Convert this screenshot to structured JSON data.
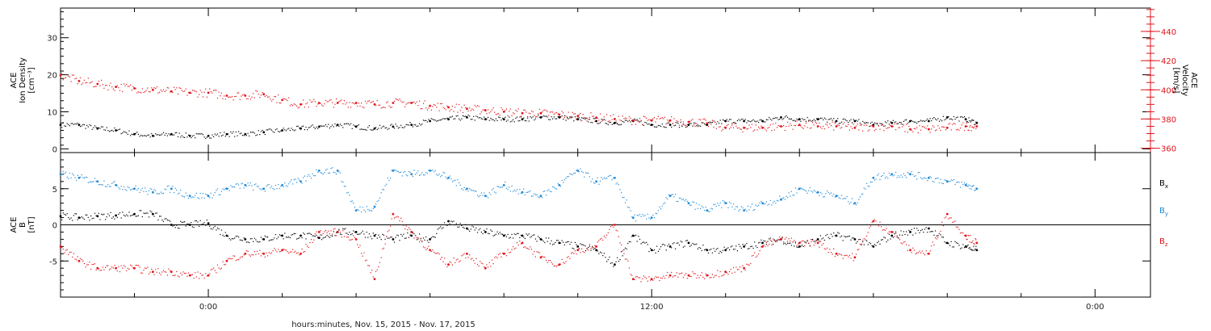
{
  "x_axis": {
    "title": "hours:minutes, Nov. 15, 2015 - Nov. 17, 2015",
    "start_hour": -4,
    "end_hour": 25.5,
    "labeled_ticks": [
      {
        "hour": 0,
        "label": "0:00"
      },
      {
        "hour": 12,
        "label": "12:00"
      },
      {
        "hour": 24,
        "label": "0:00"
      }
    ],
    "minor_tick_hours": [
      -2,
      2,
      4,
      6,
      8,
      10,
      14,
      16,
      18,
      20,
      22
    ]
  },
  "chart_data": [
    {
      "type": "scatter",
      "panel": "plasma",
      "left_axis": {
        "label_lines": [
          "ACE",
          "Ion Density",
          "[cm⁻³]"
        ],
        "ylim": [
          -1,
          38
        ],
        "ticks": [
          0,
          10,
          20,
          30
        ]
      },
      "right_axis": {
        "label_lines": [
          "ACE",
          "Velocity",
          "[km/s]"
        ],
        "ylim": [
          357,
          456
        ],
        "ticks": [
          360,
          380,
          400,
          420,
          440
        ],
        "color": "#e0151b"
      },
      "series": [
        {
          "color": "#000000",
          "axis": "left",
          "x": [
            -4,
            -3.5,
            -3,
            -2.5,
            -2,
            -1.5,
            -1,
            -0.5,
            0,
            0.5,
            1,
            1.5,
            2,
            2.5,
            3,
            3.5,
            4,
            4.5,
            5,
            5.5,
            6,
            6.5,
            7,
            7.5,
            8,
            8.5,
            9,
            9.5,
            10,
            10.5,
            11,
            11.5,
            12,
            12.5,
            13,
            13.5,
            14,
            14.5,
            15,
            15.5,
            16,
            16.5,
            17,
            17.5,
            18,
            18.5,
            19,
            19.5,
            20,
            20.5,
            20.8
          ],
          "y": [
            6.5,
            6.5,
            5.5,
            5,
            4,
            3.5,
            4,
            3.5,
            3.5,
            4,
            4,
            4.5,
            5,
            5.5,
            6,
            6.5,
            6,
            5.5,
            6,
            6.5,
            7.5,
            8,
            8.5,
            8,
            8,
            8,
            8.5,
            8.5,
            8,
            7.5,
            7,
            7.5,
            6.5,
            6.5,
            6.5,
            6.5,
            7.5,
            7.5,
            7.5,
            8.5,
            8,
            8,
            7.5,
            7.5,
            6.5,
            7,
            7.5,
            7.5,
            8.5,
            8,
            7
          ]
        },
        {
          "color": "#e0151b",
          "axis": "right",
          "x": [
            -4,
            -3.5,
            -3,
            -2.5,
            -2,
            -1.5,
            -1,
            -0.5,
            0,
            0.5,
            1,
            1.5,
            2,
            2.5,
            3,
            3.5,
            4,
            4.5,
            5,
            5.5,
            6,
            6.5,
            7,
            7.5,
            8,
            8.5,
            9,
            9.5,
            10,
            10.5,
            11,
            11.5,
            12,
            12.5,
            13,
            13.5,
            14,
            14.5,
            15,
            15.5,
            16,
            16.5,
            17,
            17.5,
            18,
            18.5,
            19,
            19.5,
            20,
            20.5,
            20.8
          ],
          "y": [
            410,
            406,
            404,
            402,
            401,
            400,
            399,
            398,
            398,
            396,
            396,
            397,
            393,
            390,
            391,
            391,
            391,
            390,
            391,
            391,
            389,
            388,
            387,
            386,
            385,
            384,
            384,
            383,
            382,
            381,
            380,
            379,
            379,
            379,
            378,
            377,
            374,
            374,
            374,
            375,
            376,
            375,
            375,
            374,
            375,
            375,
            373,
            373,
            374,
            375,
            375
          ]
        }
      ]
    },
    {
      "type": "scatter",
      "panel": "magnetic-field",
      "left_axis": {
        "label_lines": [
          "ACE",
          "B",
          "[nT]"
        ],
        "ylim": [
          -10,
          10
        ],
        "ticks": [
          -5,
          0,
          5
        ]
      },
      "zero_line": true,
      "series": [
        {
          "name": "Bx",
          "color": "#000000",
          "x": [
            -4,
            -3.5,
            -3,
            -2.5,
            -2,
            -1.5,
            -1,
            -0.5,
            0,
            0.5,
            1,
            1.5,
            2,
            2.5,
            3,
            3.5,
            4,
            4.5,
            5,
            5.5,
            6,
            6.5,
            7,
            7.5,
            8,
            8.5,
            9,
            9.5,
            10,
            10.5,
            11,
            11.5,
            12,
            12.5,
            13,
            13.5,
            14,
            14.5,
            15,
            15.5,
            16,
            16.5,
            17,
            17.5,
            18,
            18.5,
            19,
            19.5,
            20,
            20.5,
            20.8
          ],
          "y": [
            1.2,
            1,
            1.2,
            1.3,
            1.5,
            1.5,
            0,
            0,
            0.2,
            -1.5,
            -2,
            -2,
            -1.5,
            -1.5,
            -1.8,
            -1,
            -1,
            -1.5,
            -2,
            -1.5,
            -2,
            0.5,
            -0.5,
            -1,
            -1.5,
            -1.5,
            -2,
            -2.5,
            -3,
            -3.5,
            -5.5,
            -1.5,
            -3.5,
            -3,
            -2.5,
            -3.5,
            -3.5,
            -3,
            -2.5,
            -2,
            -3,
            -2,
            -1.5,
            -2,
            -3,
            -1.5,
            -1,
            -0.5,
            -2.5,
            -3,
            -3.5
          ]
        },
        {
          "name": "By",
          "color": "#1f8ad8",
          "x": [
            -4,
            -3.5,
            -3,
            -2.5,
            -2,
            -1.5,
            -1,
            -0.5,
            0,
            0.5,
            1,
            1.5,
            2,
            2.5,
            3,
            3.5,
            4,
            4.5,
            5,
            5.5,
            6,
            6.5,
            7,
            7.5,
            8,
            8.5,
            9,
            9.5,
            10,
            10.5,
            11,
            11.5,
            12,
            12.5,
            13,
            13.5,
            14,
            14.5,
            15,
            15.5,
            16,
            16.5,
            17,
            17.5,
            18,
            18.5,
            19,
            19.5,
            20,
            20.5,
            20.8
          ],
          "y": [
            7,
            6.5,
            6,
            5.5,
            5,
            4.5,
            5,
            4,
            4,
            5,
            5.5,
            5,
            5.5,
            6,
            7.5,
            7.5,
            2,
            2.5,
            7.5,
            7,
            7.5,
            6.5,
            5,
            4,
            5.5,
            4.5,
            4,
            5.5,
            7.5,
            6,
            6.5,
            1,
            1,
            4,
            3,
            2,
            3,
            2,
            3,
            3.5,
            5,
            4.5,
            4,
            3,
            6.5,
            7,
            7,
            6.5,
            6,
            5.5,
            5
          ]
        },
        {
          "name": "Bz",
          "color": "#e0151b",
          "x": [
            -4,
            -3.5,
            -3,
            -2.5,
            -2,
            -1.5,
            -1,
            -0.5,
            0,
            0.5,
            1,
            1.5,
            2,
            2.5,
            3,
            3.5,
            4,
            4.5,
            5,
            5.5,
            6,
            6.5,
            7,
            7.5,
            8,
            8.5,
            9,
            9.5,
            10,
            10.5,
            11,
            11.5,
            12,
            12.5,
            13,
            13.5,
            14,
            14.5,
            15,
            15.5,
            16,
            16.5,
            17,
            17.5,
            18,
            18.5,
            19,
            19.5,
            20,
            20.5,
            20.8
          ],
          "y": [
            -3,
            -5,
            -6,
            -6,
            -6,
            -6.5,
            -6.5,
            -7,
            -7,
            -5,
            -4,
            -4,
            -3.5,
            -4,
            -1,
            -1,
            -2,
            -7.5,
            1.5,
            -1,
            -3.5,
            -5.5,
            -4,
            -6,
            -4,
            -2.5,
            -4.5,
            -5.5,
            -3.5,
            -3,
            0,
            -7.5,
            -7.5,
            -7,
            -7,
            -7,
            -6.5,
            -6,
            -3,
            -2,
            -2.5,
            -2.5,
            -4,
            -4.5,
            0.5,
            -1,
            -3.5,
            -4,
            1.5,
            -1.5,
            -2.5
          ]
        }
      ]
    }
  ],
  "legend": {
    "bx": "B",
    "bx_sub": "x",
    "by": "B",
    "by_sub": "y",
    "bz": "B",
    "bz_sub": "z"
  }
}
